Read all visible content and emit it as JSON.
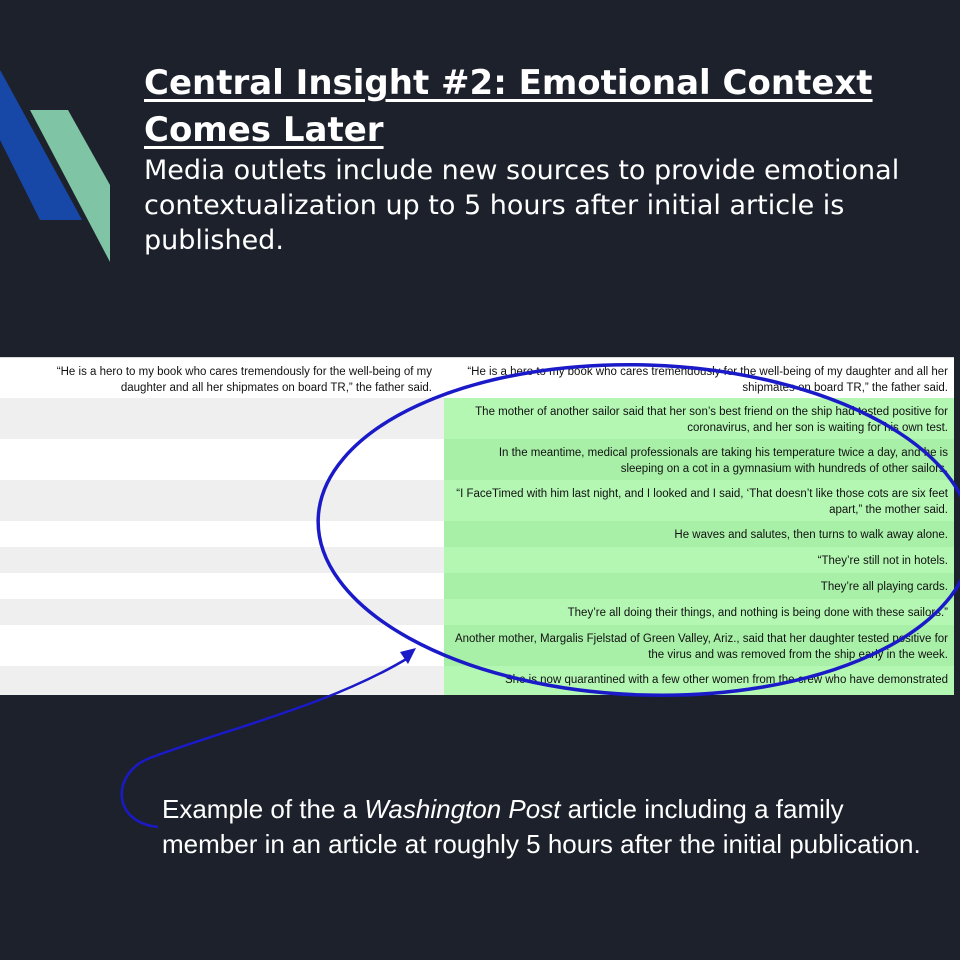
{
  "title": "Central Insight #2: Emotional Context Comes Later",
  "subtitle": "Media outlets include new sources to provide emotional contextualization up to 5 hours after initial article is published.",
  "table": {
    "left_first": "“He is a hero to my book who cares tremendously for the well-being of my daughter and all her shipmates on board TR,” the father said.",
    "right": [
      "“He is a hero to my book who cares tremendously for the well-being of my daughter and all her shipmates on board TR,” the father said.",
      "The mother of another sailor said that her son’s best friend on the ship had tested positive for coronavirus, and her son is waiting for his own test.",
      "In the meantime, medical professionals are taking his temperature twice a day, and he is sleeping on a cot in a gymnasium with hundreds of other sailors.",
      "“I FaceTimed with him last night, and I looked and I said, ‘That doesn’t like those cots are six feet apart,” the mother said.",
      "He waves and salutes, then turns to walk away alone.",
      "“They’re still not in hotels.",
      "They’re all playing cards.",
      "They’re all doing their things, and nothing is being done with these sailors.”",
      "Another mother, Margalis Fjelstad of Green Valley, Ariz., said that her daughter tested positive for the virus and was removed from the ship early in the week.",
      "She is now quarantined with a few other women from the crew who have demonstrated"
    ]
  },
  "caption": {
    "before": "Example of the a ",
    "italic": "Washington Post",
    "after": " article including a family member in an article at roughly 5 hours after the initial publication."
  },
  "colors": {
    "background": "#1d212c",
    "highlight_green": "#b3f7b3",
    "annotation_blue": "#1a1ac8",
    "logo_blue": "#1748a8",
    "logo_green": "#7fc4a4"
  }
}
